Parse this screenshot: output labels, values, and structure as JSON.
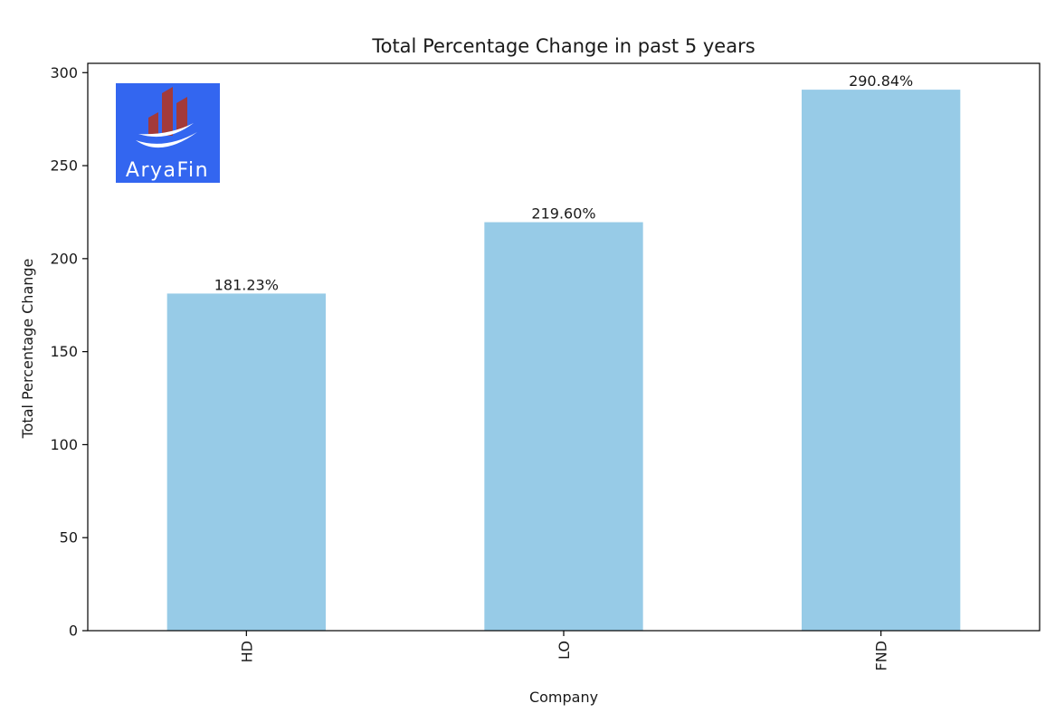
{
  "chart_data": {
    "type": "bar",
    "title": "Total Percentage Change in past 5 years",
    "xlabel": "Company",
    "ylabel": "Total Percentage Change",
    "categories": [
      "HD",
      "LO",
      "FND"
    ],
    "values": [
      181.23,
      219.6,
      290.84
    ],
    "data_labels": [
      "181.23%",
      "219.60%",
      "290.84%"
    ],
    "ylim": [
      0,
      305
    ],
    "yticks": [
      0,
      50,
      100,
      150,
      200,
      250,
      300
    ],
    "grid": false,
    "legend": "none",
    "bar_color": "#97cbe7",
    "logo": {
      "text": "AryaFin",
      "background": "#3366f0",
      "building_color": "#a33a3a"
    }
  }
}
